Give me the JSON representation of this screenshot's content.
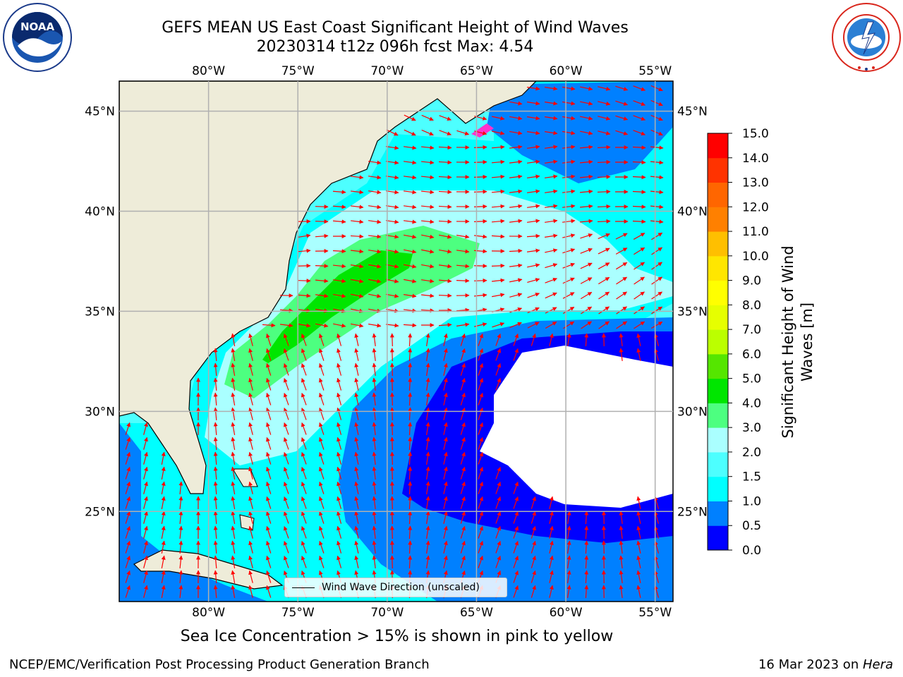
{
  "title": {
    "line1": "GEFS MEAN US East Coast Significant Height of Wind Waves",
    "line2": "20230314 t12z 096h fcst   Max: 4.54"
  },
  "map": {
    "lon_range": [
      -85,
      -54
    ],
    "lat_range": [
      20.5,
      46.5
    ],
    "lon_ticks": [
      "80°W",
      "75°W",
      "70°W",
      "65°W",
      "60°W",
      "55°W"
    ],
    "lat_ticks": [
      "45°N",
      "40°N",
      "35°N",
      "30°N",
      "25°N"
    ],
    "land_color": "#eeecd9",
    "arrow_color": "#ff0000"
  },
  "legend": {
    "label": "Wind Wave Direction (unscaled)"
  },
  "colorbar": {
    "label": "Significant Height of Wind Waves [m]",
    "ticks": [
      "0.0",
      "0.5",
      "1.0",
      "1.5",
      "2.0",
      "3.0",
      "4.0",
      "5.0",
      "6.0",
      "7.0",
      "8.0",
      "9.0",
      "10.0",
      "11.0",
      "12.0",
      "13.0",
      "14.0",
      "15.0"
    ],
    "colors": [
      "#0000ff",
      "#0080ff",
      "#00ffff",
      "#4dffff",
      "#aaffff",
      "#4dff80",
      "#00e600",
      "#55e600",
      "#bbff00",
      "#e6ff00",
      "#ffff00",
      "#ffe600",
      "#ffbf00",
      "#ff8000",
      "#ff6600",
      "#ff3300",
      "#ff0000"
    ]
  },
  "logos": {
    "noaa_text": "NOAA",
    "nws_text": "NATIONAL WEATHER SERVICE"
  },
  "footer": {
    "note": "Sea Ice Concentration > 15% is shown in pink to yellow",
    "credit_left": "NCEP/EMC/Verification Post Processing Product Generation Branch",
    "credit_date": "16 Mar 2023 on ",
    "credit_host": "Hera"
  }
}
